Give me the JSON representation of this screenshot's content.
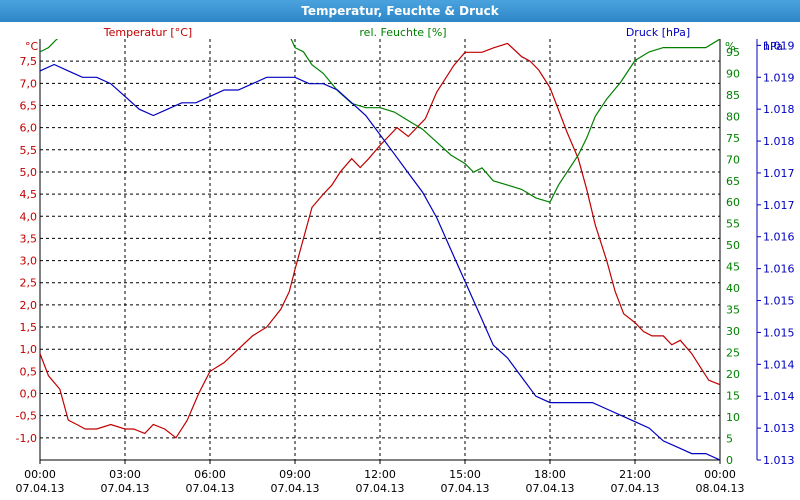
{
  "window": {
    "title": "Temperatur, Feuchte & Druck"
  },
  "colors": {
    "temperature": "#c00000",
    "humidity": "#008000",
    "pressure": "#0000c0",
    "grid": "#000000"
  },
  "chart_data": {
    "type": "line",
    "title": "Temperatur, Feuchte & Druck",
    "grid": true,
    "x_ticks": [
      {
        "time": "00:00",
        "date": "07.04.13",
        "h": 0
      },
      {
        "time": "03:00",
        "date": "07.04.13",
        "h": 3
      },
      {
        "time": "06:00",
        "date": "07.04.13",
        "h": 6
      },
      {
        "time": "09:00",
        "date": "07.04.13",
        "h": 9
      },
      {
        "time": "12:00",
        "date": "07.04.13",
        "h": 12
      },
      {
        "time": "15:00",
        "date": "07.04.13",
        "h": 15
      },
      {
        "time": "18:00",
        "date": "07.04.13",
        "h": 18
      },
      {
        "time": "21:00",
        "date": "07.04.13",
        "h": 21
      },
      {
        "time": "00:00",
        "date": "08.04.13",
        "h": 24
      }
    ],
    "axes": {
      "temperature": {
        "label": "Temperatur [°C]",
        "unit": "°C",
        "range": [
          -1.5,
          8.0
        ],
        "ticks": [
          "-1,0",
          "-0,5",
          "0,0",
          "0,5",
          "1,0",
          "1,5",
          "2,0",
          "2,5",
          "3,0",
          "3,5",
          "4,0",
          "4,5",
          "5,0",
          "5,5",
          "6,0",
          "6,5",
          "7,0",
          "7,5"
        ],
        "tick_values": [
          -1.0,
          -0.5,
          0.0,
          0.5,
          1.0,
          1.5,
          2.0,
          2.5,
          3.0,
          3.5,
          4.0,
          4.5,
          5.0,
          5.5,
          6.0,
          6.5,
          7.0,
          7.5
        ]
      },
      "humidity": {
        "label": "rel. Feuchte [%]",
        "unit": "%",
        "range": [
          0,
          98
        ],
        "ticks": [
          "0",
          "5",
          "10",
          "15",
          "20",
          "25",
          "30",
          "35",
          "40",
          "45",
          "50",
          "55",
          "60",
          "65",
          "70",
          "75",
          "80",
          "85",
          "90",
          "95"
        ],
        "tick_values": [
          0,
          5,
          10,
          15,
          20,
          25,
          30,
          35,
          40,
          45,
          50,
          55,
          60,
          65,
          70,
          75,
          80,
          85,
          90,
          95
        ]
      },
      "pressure": {
        "label": "Druck [hPa]",
        "unit": "hPa",
        "range": [
          1013.0,
          1019.6
        ],
        "ticks": [
          "1.013",
          "1.013",
          "1.014",
          "1.014",
          "1.015",
          "1.015",
          "1.016",
          "1.016",
          "1.017",
          "1.017",
          "1.018",
          "1.018",
          "1.019",
          "1.019"
        ],
        "tick_values": [
          1013.0,
          1013.5,
          1014.0,
          1014.5,
          1015.0,
          1015.5,
          1016.0,
          1016.5,
          1017.0,
          1017.5,
          1018.0,
          1018.5,
          1019.0,
          1019.5
        ]
      }
    },
    "series": [
      {
        "name": "Temperatur [°C]",
        "axis": "temperature",
        "x": [
          0,
          0.3,
          0.7,
          1.0,
          1.3,
          1.6,
          2.0,
          2.5,
          3.0,
          3.3,
          3.7,
          4.0,
          4.4,
          4.8,
          5.2,
          5.6,
          6.0,
          6.5,
          7.0,
          7.5,
          8.0,
          8.5,
          8.8,
          9.0,
          9.3,
          9.6,
          10.0,
          10.3,
          10.6,
          11.0,
          11.3,
          11.6,
          12.0,
          12.3,
          12.6,
          13.0,
          13.3,
          13.6,
          14.0,
          14.3,
          14.6,
          15.0,
          15.3,
          15.6,
          16.0,
          16.5,
          17.0,
          17.3,
          17.6,
          18.0,
          18.3,
          18.6,
          19.0,
          19.3,
          19.6,
          20.0,
          20.3,
          20.6,
          21.0,
          21.3,
          21.6,
          22.0,
          22.3,
          22.6,
          23.0,
          23.3,
          23.6,
          24.0
        ],
        "values": [
          0.9,
          0.4,
          0.1,
          -0.6,
          -0.7,
          -0.8,
          -0.8,
          -0.7,
          -0.8,
          -0.8,
          -0.9,
          -0.7,
          -0.8,
          -1.0,
          -0.6,
          0.0,
          0.5,
          0.7,
          1.0,
          1.3,
          1.5,
          1.9,
          2.3,
          2.8,
          3.5,
          4.2,
          4.5,
          4.7,
          5.0,
          5.3,
          5.1,
          5.3,
          5.6,
          5.8,
          6.0,
          5.8,
          6.0,
          6.2,
          6.8,
          7.1,
          7.4,
          7.7,
          7.7,
          7.7,
          7.8,
          7.9,
          7.6,
          7.5,
          7.3,
          6.9,
          6.4,
          5.9,
          5.3,
          4.6,
          3.8,
          3.0,
          2.3,
          1.8,
          1.6,
          1.4,
          1.3,
          1.3,
          1.1,
          1.2,
          0.9,
          0.6,
          0.3,
          0.2
        ]
      },
      {
        "name": "rel. Feuchte [%]",
        "axis": "humidity",
        "x": [
          0,
          0.3,
          0.6,
          1.0,
          8.8,
          9.0,
          9.3,
          9.6,
          10.0,
          10.5,
          11.0,
          11.5,
          12.0,
          12.5,
          13.0,
          13.5,
          14.0,
          14.5,
          15.0,
          15.3,
          15.6,
          16.0,
          16.5,
          17.0,
          17.5,
          18.0,
          18.3,
          18.6,
          19.0,
          19.3,
          19.6,
          20.0,
          20.5,
          21.0,
          21.5,
          22.0,
          22.5,
          23.0,
          23.5,
          24.0
        ],
        "values": [
          95,
          96,
          98,
          99,
          99,
          96,
          95,
          92,
          90,
          86,
          83,
          82,
          82,
          81,
          79,
          77,
          74,
          71,
          69,
          67,
          68,
          65,
          64,
          63,
          61,
          60,
          64,
          67,
          71,
          75,
          80,
          84,
          88,
          93,
          95,
          96,
          96,
          96,
          96,
          98
        ]
      },
      {
        "name": "Druck [hPa]",
        "axis": "pressure",
        "x": [
          0,
          0.5,
          1.0,
          1.5,
          2.0,
          2.5,
          3.0,
          3.5,
          4.0,
          4.5,
          5.0,
          5.5,
          6.0,
          6.5,
          7.0,
          7.5,
          8.0,
          8.5,
          9.0,
          9.5,
          10.0,
          10.5,
          11.0,
          11.5,
          12.0,
          12.5,
          13.0,
          13.5,
          14.0,
          14.5,
          15.0,
          15.5,
          16.0,
          16.5,
          17.0,
          17.5,
          18.0,
          18.5,
          19.0,
          19.5,
          20.0,
          20.5,
          21.0,
          21.5,
          22.0,
          22.5,
          23.0,
          23.5,
          24.0
        ],
        "values": [
          1019.1,
          1019.2,
          1019.1,
          1019.0,
          1019.0,
          1018.9,
          1018.7,
          1018.5,
          1018.4,
          1018.5,
          1018.6,
          1018.6,
          1018.7,
          1018.8,
          1018.8,
          1018.9,
          1019.0,
          1019.0,
          1019.0,
          1018.9,
          1018.9,
          1018.8,
          1018.6,
          1018.4,
          1018.1,
          1017.8,
          1017.5,
          1017.2,
          1016.8,
          1016.3,
          1015.8,
          1015.3,
          1014.8,
          1014.6,
          1014.3,
          1014.0,
          1013.9,
          1013.9,
          1013.9,
          1013.9,
          1013.8,
          1013.7,
          1013.6,
          1013.5,
          1013.3,
          1013.2,
          1013.1,
          1013.1,
          1013.0
        ]
      }
    ]
  }
}
